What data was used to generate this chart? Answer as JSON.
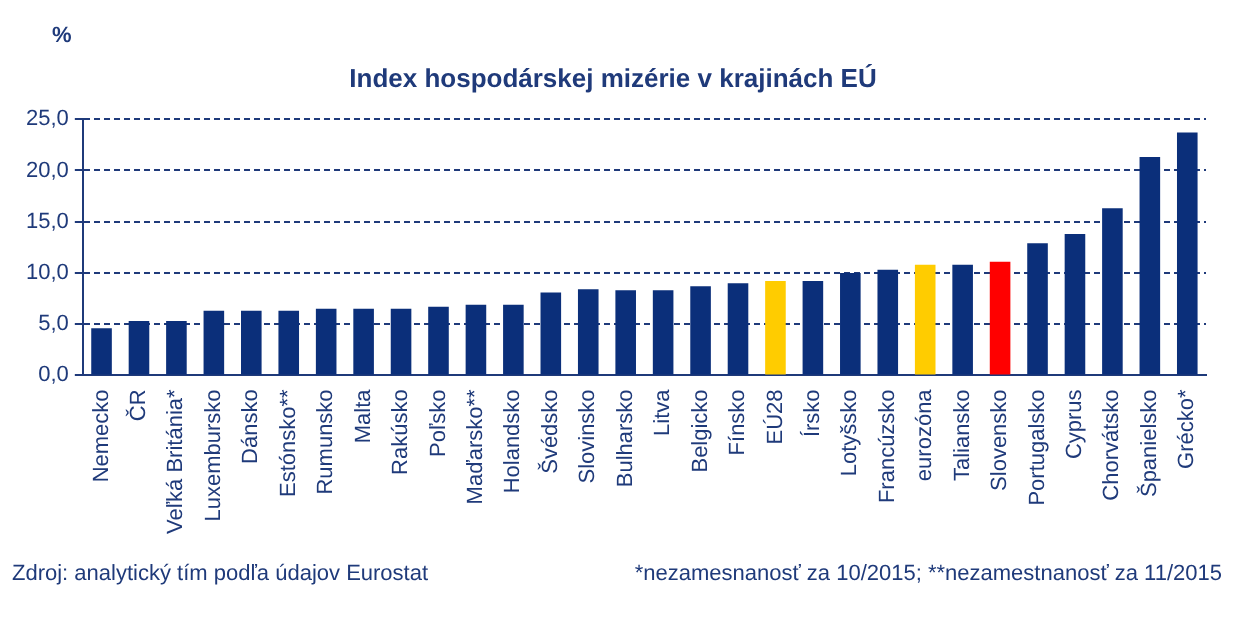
{
  "chart_data": {
    "type": "bar",
    "title": "Index hospodárskej mizérie v krajinách EÚ",
    "ylabel": "%",
    "categories": [
      "Nemecko",
      "ČR",
      "Veľká Británia*",
      "Luxembursko",
      "Dánsko",
      "Estónsko**",
      "Rumunsko",
      "Malta",
      "Rakúsko",
      "Poľsko",
      "Maďarsko**",
      "Holandsko",
      "Švédsko",
      "Slovinsko",
      "Bulharsko",
      "Litva",
      "Belgicko",
      "Fínsko",
      "EÚ28",
      "Írsko",
      "Lotyšsko",
      "Francúzsko",
      "eurozóna",
      "Taliansko",
      "Slovensko",
      "Portugalsko",
      "Cyprus",
      "Chorvátsko",
      "Španielsko",
      "Grécko*"
    ],
    "values": [
      4.6,
      5.3,
      5.3,
      6.3,
      6.3,
      6.3,
      6.5,
      6.5,
      6.5,
      6.7,
      6.9,
      6.9,
      8.1,
      8.4,
      8.3,
      8.3,
      8.7,
      9.0,
      9.2,
      9.2,
      10.0,
      10.3,
      10.8,
      10.8,
      11.1,
      12.9,
      13.8,
      16.3,
      21.3,
      23.7
    ],
    "colors": [
      "#0b2f7a",
      "#0b2f7a",
      "#0b2f7a",
      "#0b2f7a",
      "#0b2f7a",
      "#0b2f7a",
      "#0b2f7a",
      "#0b2f7a",
      "#0b2f7a",
      "#0b2f7a",
      "#0b2f7a",
      "#0b2f7a",
      "#0b2f7a",
      "#0b2f7a",
      "#0b2f7a",
      "#0b2f7a",
      "#0b2f7a",
      "#0b2f7a",
      "#ffcc00",
      "#0b2f7a",
      "#0b2f7a",
      "#0b2f7a",
      "#ffcc00",
      "#0b2f7a",
      "#ff0000",
      "#0b2f7a",
      "#0b2f7a",
      "#0b2f7a",
      "#0b2f7a",
      "#0b2f7a"
    ],
    "ylim": [
      0,
      25
    ],
    "yticks": [
      {
        "value": 0,
        "label": "0,0"
      },
      {
        "value": 5,
        "label": "5,0"
      },
      {
        "value": 10,
        "label": "10,0"
      },
      {
        "value": 15,
        "label": "15,0"
      },
      {
        "value": 20,
        "label": "20,0"
      },
      {
        "value": 25,
        "label": "25,0"
      }
    ],
    "grid": "y",
    "line_style": "dashed",
    "legend": false,
    "annotations": [
      "Zdroj: analytický tím podľa údajov Eurostat",
      "*nezamesnanosť za 10/2015; **nezamestnanosť za 11/2015"
    ]
  }
}
